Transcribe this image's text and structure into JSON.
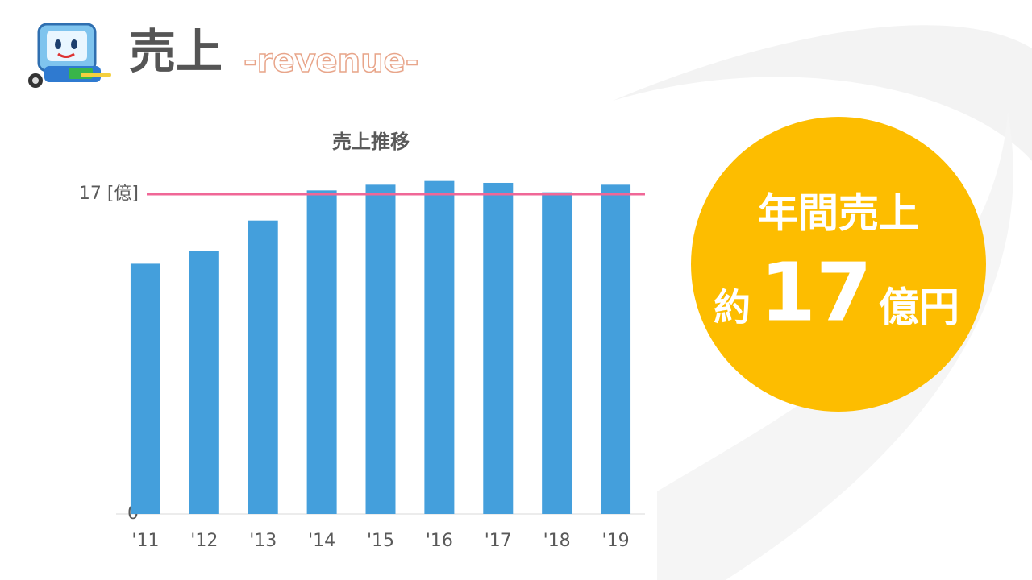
{
  "header": {
    "title": "売上",
    "subtitle": "-revenue-"
  },
  "chart_data": {
    "type": "bar",
    "title": "売上推移",
    "categories": [
      "'11",
      "'12",
      "'13",
      "'14",
      "'15",
      "'16",
      "'17",
      "'18",
      "'19"
    ],
    "values": [
      13.3,
      14.0,
      15.6,
      17.2,
      17.5,
      17.7,
      17.6,
      17.1,
      17.5
    ],
    "color": "#449fdc",
    "ylim": [
      0,
      18
    ],
    "yticks": [
      0,
      {
        "value": 17,
        "label": "17 [億]"
      }
    ],
    "reference_line": {
      "value": 17,
      "color": "#f06797"
    },
    "grid": false
  },
  "callout": {
    "label": "年間売上",
    "prefix": "約",
    "value": 17,
    "suffix": "億円"
  }
}
